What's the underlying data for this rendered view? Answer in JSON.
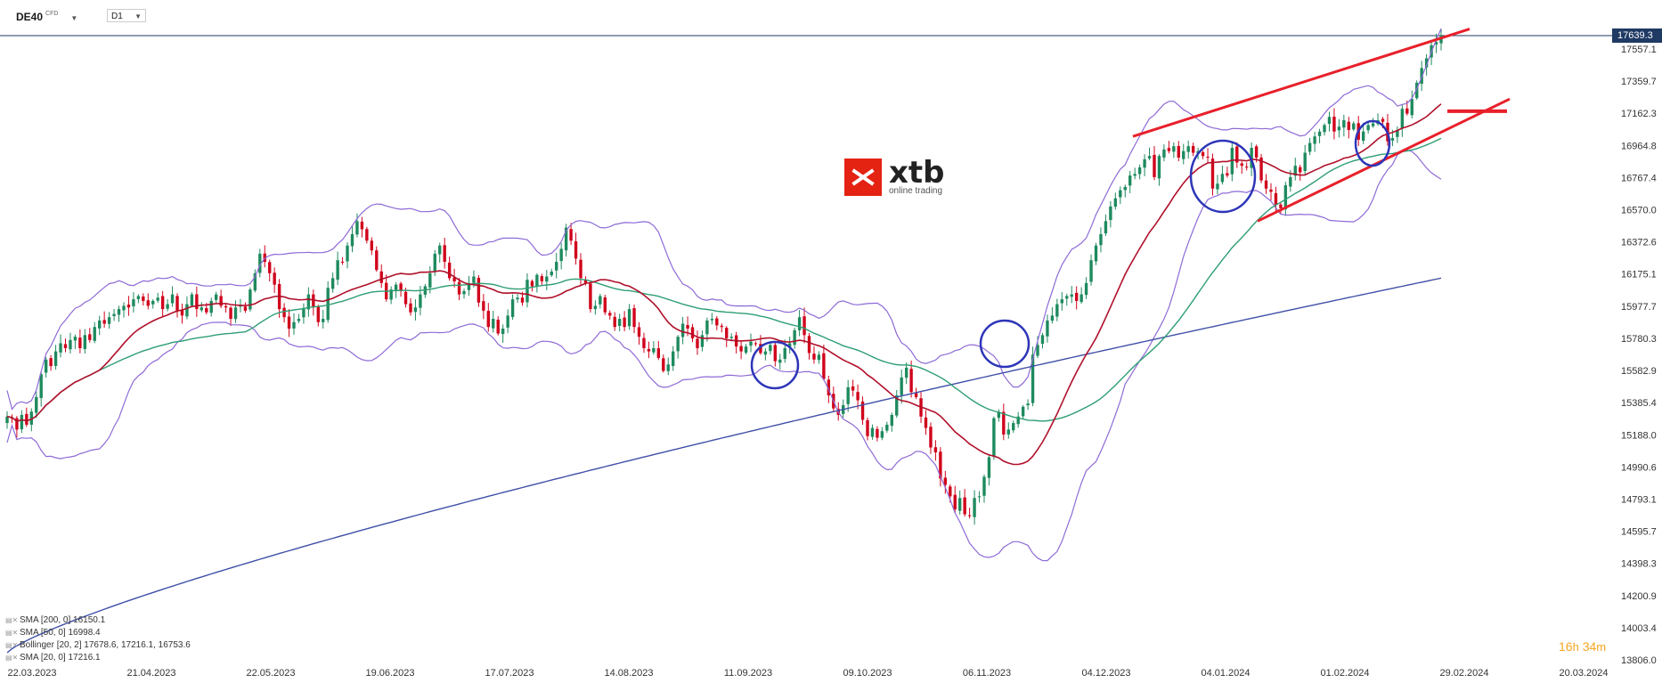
{
  "toolbar": {
    "symbol": "DE40",
    "symbol_sub": "CFD",
    "timeframe": "D1"
  },
  "logo": {
    "brand": "xtb",
    "tagline": "online trading",
    "brand_color": "#e42313"
  },
  "last_price": "17639.3",
  "countdown": {
    "hours": "16",
    "h_unit": "h",
    "minutes": "34",
    "m_unit": "m",
    "color": "#f5a623"
  },
  "legend": [
    {
      "text": "SMA  [200,  0]  16150.1"
    },
    {
      "text": "SMA  [50,  0]  16998.4"
    },
    {
      "text": "Bollinger  [20,  2]  17678.6,   17216.1,   16753.6"
    },
    {
      "text": "SMA  [20,  0]  17216.1"
    }
  ],
  "colors": {
    "up": "#1e8a5e",
    "down": "#d0021b",
    "sma200": "#3f4fa8",
    "sma50": "#2e9e73",
    "sma20": "#b0102a",
    "bollinger": "#8e6ad6",
    "trendline": "#e8202a",
    "circle": "#2d35b8"
  },
  "chart_data": {
    "type": "candlestick",
    "symbol": "DE40",
    "timeframe": "D1",
    "ylim": [
      13806.0,
      17750.0
    ],
    "y_ticks": [
      "17557.1",
      "17359.7",
      "17162.3",
      "16964.8",
      "16767.4",
      "16570.0",
      "16372.6",
      "16175.1",
      "15977.7",
      "15780.3",
      "15582.9",
      "15385.4",
      "15188.0",
      "14990.6",
      "14793.1",
      "14595.7",
      "14398.3",
      "14200.9",
      "14003.4",
      "13806.0"
    ],
    "x_ticks": [
      "22.03.2023",
      "21.04.2023",
      "22.05.2023",
      "19.06.2023",
      "17.07.2023",
      "14.08.2023",
      "11.09.2023",
      "09.10.2023",
      "06.11.2023",
      "04.12.2023",
      "04.01.2024",
      "01.02.2024",
      "29.02.2024",
      "20.03.2024"
    ],
    "last_price": 17639.3,
    "closes": [
      15300,
      15290,
      15220,
      15310,
      15250,
      15330,
      15420,
      15560,
      15650,
      15610,
      15700,
      15750,
      15720,
      15770,
      15790,
      15720,
      15800,
      15770,
      15850,
      15890,
      15870,
      15910,
      15930,
      15960,
      15980,
      15970,
      16020,
      16040,
      16010,
      15980,
      16010,
      16030,
      15960,
      15990,
      16050,
      15950,
      15920,
      15990,
      16050,
      15960,
      15970,
      15940,
      16010,
      16050,
      15980,
      15970,
      15900,
      15970,
      15980,
      15950,
      16080,
      16180,
      16300,
      16250,
      16180,
      16110,
      15960,
      15910,
      15840,
      15880,
      15900,
      15960,
      16050,
      15970,
      15880,
      15900,
      16090,
      16150,
      16260,
      16250,
      16350,
      16420,
      16500,
      16450,
      16380,
      16320,
      16200,
      16120,
      16020,
      16080,
      16110,
      16070,
      15990,
      15940,
      15970,
      16050,
      16100,
      16180,
      16300,
      16350,
      16250,
      16150,
      16130,
      16050,
      16070,
      16120,
      16160,
      16000,
      15950,
      15850,
      15900,
      15810,
      15840,
      15920,
      16020,
      16030,
      16000,
      16140,
      16100,
      16170,
      16130,
      16160,
      16190,
      16250,
      16330,
      16460,
      16380,
      16270,
      16150,
      16120,
      15960,
      15980,
      16040,
      15940,
      15920,
      15850,
      15900,
      15850,
      15960,
      15850,
      15790,
      15720,
      15700,
      15720,
      15660,
      15580,
      15620,
      15700,
      15790,
      15870,
      15840,
      15780,
      15720,
      15800,
      15890,
      15900,
      15860,
      15850,
      15780,
      15790,
      15730,
      15700,
      15730,
      15760,
      15750,
      15690,
      15700,
      15740,
      15640,
      15650,
      15720,
      15750,
      15830,
      15910,
      15800,
      15690,
      15650,
      15680,
      15530,
      15430,
      15350,
      15310,
      15370,
      15480,
      15460,
      15400,
      15280,
      15180,
      15230,
      15170,
      15210,
      15250,
      15310,
      15430,
      15540,
      15600,
      15450,
      15420,
      15300,
      15230,
      15110,
      15080,
      14920,
      14880,
      14810,
      14730,
      14800,
      14700,
      14690,
      14800,
      14810,
      14930,
      15050,
      15290,
      15330,
      15190,
      15220,
      15260,
      15300,
      15360,
      15380,
      15680,
      15740,
      15800,
      15890,
      15920,
      15990,
      16020,
      16040,
      16050,
      16010,
      16050,
      16120,
      16260,
      16350,
      16420,
      16500,
      16590,
      16640,
      16690,
      16710,
      16780,
      16790,
      16830,
      16880,
      16900,
      16770,
      16900,
      16940,
      16930,
      16960,
      16890,
      16930,
      16960,
      16920,
      16930,
      16900,
      16890,
      16700,
      16730,
      16790,
      16780,
      16950,
      16860,
      16840,
      16830,
      16950,
      16890,
      16750,
      16700,
      16680,
      16600,
      16580,
      16720,
      16770,
      16840,
      16800,
      16920,
      16980,
      17020,
      17050,
      17090,
      17140,
      17050,
      17080,
      17120,
      17060,
      17100,
      17000,
      17050,
      17090,
      17100,
      17120,
      17110,
      16990,
      17010,
      17060,
      17190,
      17160,
      17250,
      17350,
      17440,
      17500,
      17580,
      17600,
      17639
    ]
  }
}
